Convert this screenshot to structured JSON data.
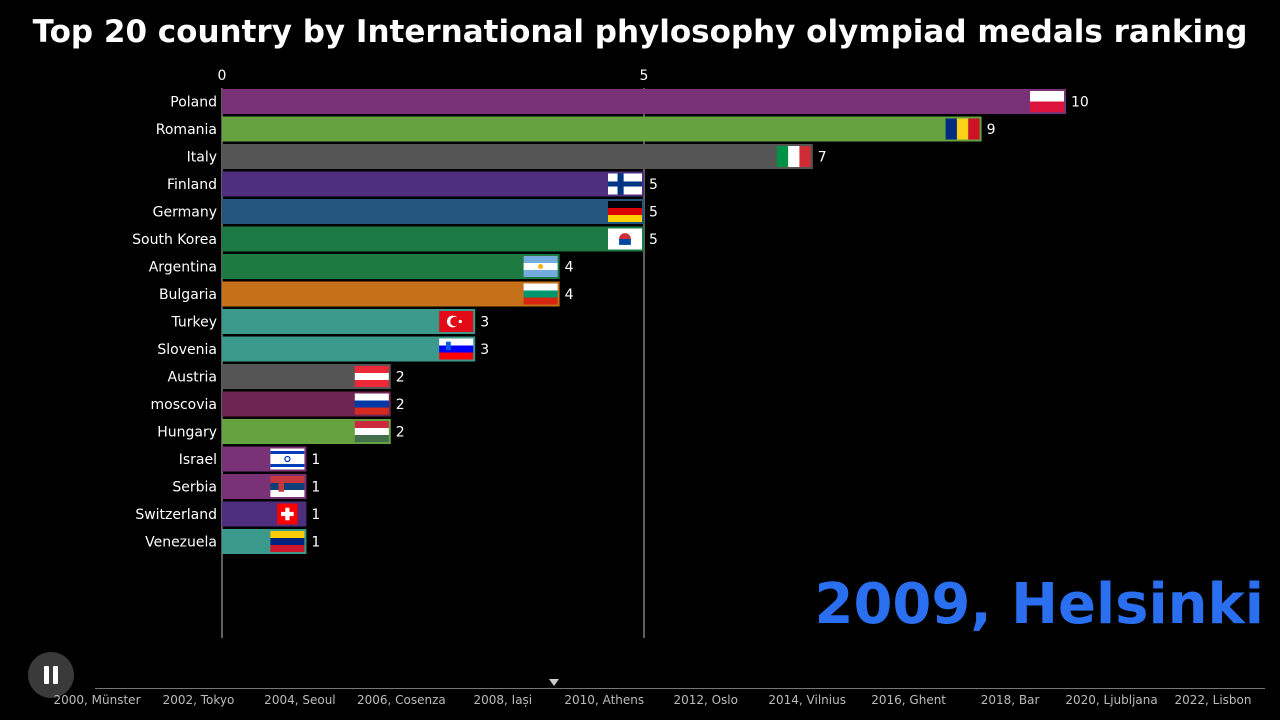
{
  "title": "Top 20 country by International phylosophy olympiad medals ranking",
  "year_label": "2009, Helsinki",
  "chart_data": {
    "type": "bar",
    "orientation": "horizontal",
    "title": "Top 20 country by International phylosophy olympiad medals ranking",
    "xlabel": "",
    "ylabel": "",
    "xlim": [
      0,
      10.7
    ],
    "x_ticks": [
      "0",
      "5"
    ],
    "x_tick_values": [
      0,
      5
    ],
    "grid": "vertical lines at ticks",
    "categories": [
      "Poland",
      "Romania",
      "Italy",
      "Finland",
      "Germany",
      "South Korea",
      "Argentina",
      "Bulgaria",
      "Turkey",
      "Slovenia",
      "Austria",
      "moscovia",
      "Hungary",
      "Israel",
      "Serbia",
      "Switzerland",
      "Venezuela"
    ],
    "values": [
      10,
      9,
      7,
      5,
      5,
      5,
      4,
      4,
      3,
      3,
      2,
      2,
      2,
      1,
      1,
      1,
      1
    ],
    "value_labels": [
      "10",
      "9",
      "7",
      "5",
      "5",
      "5",
      "4",
      "4",
      "3",
      "3",
      "2",
      "2",
      "2",
      "1",
      "1",
      "1",
      "1"
    ],
    "bar_colors": [
      "#7a3277",
      "#66a23f",
      "#555555",
      "#4e2f7f",
      "#22567d",
      "#1b7a43",
      "#1d7a40",
      "#c6701a",
      "#3b9a8b",
      "#3b9a8b",
      "#555555",
      "#6e2552",
      "#66a23f",
      "#7a3277",
      "#7a3277",
      "#4e2f7f",
      "#3b9a8b"
    ],
    "flags": [
      "poland-flag-icon",
      "romania-flag-icon",
      "italy-flag-icon",
      "finland-flag-icon",
      "germany-flag-icon",
      "south-korea-flag-icon",
      "argentina-flag-icon",
      "bulgaria-flag-icon",
      "turkey-flag-icon",
      "slovenia-flag-icon",
      "austria-flag-icon",
      "russia-flag-icon",
      "hungary-flag-icon",
      "israel-flag-icon",
      "serbia-flag-icon",
      "switzerland-flag-icon",
      "venezuela-flag-icon"
    ]
  },
  "timeline": {
    "labels": [
      "2000, Münster",
      "2002, Tokyo",
      "2004, Seoul",
      "2006, Cosenza",
      "2008, Iași",
      "2010, Athens",
      "2012, Oslo",
      "2014, Vilnius",
      "2016, Ghent",
      "2018, Bar",
      "2020, Ljubljana",
      "2022, Lisbon"
    ],
    "current": "2009, Helsinki",
    "current_index": 9
  },
  "controls": {
    "pause_icon": "pause-icon"
  },
  "colors": {
    "year_label": "#2a6ff0",
    "background": "#000000",
    "grid": "#bbbbbb"
  }
}
